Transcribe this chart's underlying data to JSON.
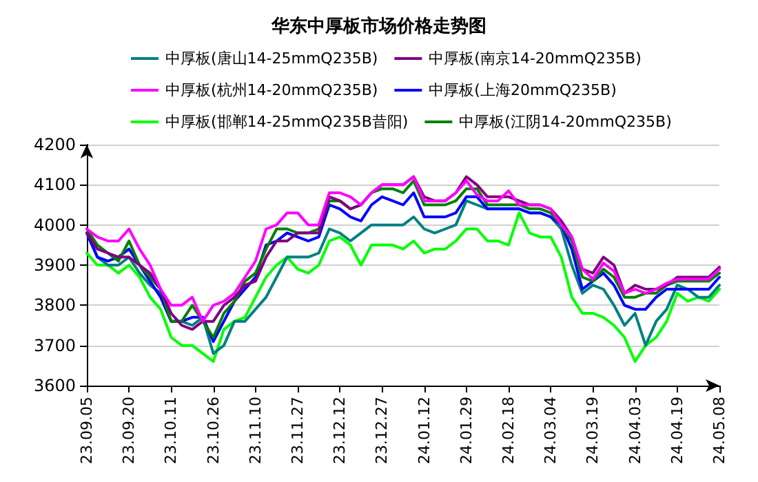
{
  "chart_data": {
    "type": "line",
    "title": "华东中厚板市场价格走势图",
    "categories": [
      "23.09.05",
      null,
      null,
      null,
      "23.09.20",
      null,
      null,
      null,
      "23.10.11",
      null,
      null,
      null,
      "23.10.26",
      null,
      null,
      null,
      "23.11.10",
      null,
      null,
      null,
      "23.11.27",
      null,
      null,
      null,
      "23.12.12",
      null,
      null,
      null,
      "23.12.27",
      null,
      null,
      null,
      "24.01.12",
      null,
      null,
      null,
      "24.01.29",
      null,
      null,
      null,
      "24.02.18",
      null,
      null,
      null,
      "24.03.04",
      null,
      null,
      null,
      "24.03.19",
      null,
      null,
      null,
      "24.04.03",
      null,
      null,
      null,
      "24.04.19",
      null,
      null,
      null,
      "24.05.08"
    ],
    "series": [
      {
        "name": "中厚板(唐山14-25mmQ235B)",
        "color": "#008080",
        "values": [
          3980,
          3920,
          3900,
          3900,
          3920,
          3880,
          3850,
          3830,
          3760,
          3760,
          3750,
          3770,
          3680,
          3700,
          3760,
          3760,
          3790,
          3820,
          3870,
          3920,
          3920,
          3920,
          3930,
          3990,
          3980,
          3960,
          3980,
          4000,
          4000,
          4000,
          4000,
          4020,
          3990,
          3980,
          3990,
          4000,
          4060,
          4050,
          4040,
          4040,
          4040,
          4040,
          4030,
          4030,
          4020,
          3990,
          3900,
          3830,
          3850,
          3840,
          3800,
          3750,
          3780,
          3700,
          3760,
          3790,
          3850,
          3840,
          3820,
          3820,
          3850
        ]
      },
      {
        "name": "中厚板(南京14-20mmQ235B)",
        "color": "#800080",
        "values": [
          3980,
          3940,
          3930,
          3920,
          3920,
          3900,
          3880,
          3840,
          3780,
          3750,
          3740,
          3760,
          3760,
          3800,
          3820,
          3850,
          3860,
          3920,
          3960,
          3960,
          3980,
          3980,
          3980,
          4070,
          4060,
          4040,
          4050,
          4080,
          4100,
          4100,
          4100,
          4120,
          4070,
          4060,
          4060,
          4080,
          4120,
          4100,
          4070,
          4070,
          4070,
          4060,
          4050,
          4050,
          4040,
          4010,
          3970,
          3890,
          3880,
          3920,
          3900,
          3830,
          3850,
          3840,
          3840,
          3850,
          3870,
          3870,
          3870,
          3870,
          3895
        ]
      },
      {
        "name": "中厚板(杭州14-20mmQ235B)",
        "color": "#ff00ff",
        "values": [
          3990,
          3970,
          3960,
          3960,
          3990,
          3940,
          3900,
          3840,
          3800,
          3800,
          3820,
          3760,
          3800,
          3810,
          3830,
          3870,
          3910,
          3990,
          4000,
          4030,
          4030,
          4000,
          4000,
          4080,
          4080,
          4070,
          4050,
          4080,
          4100,
          4100,
          4100,
          4120,
          4060,
          4060,
          4060,
          4080,
          4110,
          4075,
          4060,
          4060,
          4085,
          4050,
          4050,
          4050,
          4040,
          4000,
          3970,
          3890,
          3865,
          3905,
          3885,
          3830,
          3840,
          3830,
          3840,
          3855,
          3865,
          3865,
          3865,
          3865,
          3890
        ]
      },
      {
        "name": "中厚板(上海20mmQ235B)",
        "color": "#0000ff",
        "values": [
          3980,
          3920,
          3910,
          3920,
          3940,
          3900,
          3860,
          3820,
          3760,
          3760,
          3770,
          3770,
          3710,
          3760,
          3810,
          3840,
          3870,
          3950,
          3960,
          3980,
          3970,
          3960,
          3970,
          4050,
          4040,
          4020,
          4010,
          4050,
          4070,
          4060,
          4050,
          4080,
          4020,
          4020,
          4020,
          4030,
          4070,
          4070,
          4040,
          4040,
          4040,
          4040,
          4030,
          4030,
          4020,
          4000,
          3940,
          3840,
          3860,
          3880,
          3850,
          3800,
          3790,
          3790,
          3820,
          3840,
          3840,
          3840,
          3840,
          3840,
          3870
        ]
      },
      {
        "name": "中厚板(邯郸14-25mmQ235B昔阳)",
        "color": "#00ff00",
        "values": [
          3930,
          3900,
          3900,
          3880,
          3900,
          3870,
          3820,
          3790,
          3720,
          3700,
          3700,
          3680,
          3660,
          3740,
          3760,
          3770,
          3820,
          3870,
          3900,
          3920,
          3890,
          3880,
          3900,
          3960,
          3970,
          3950,
          3900,
          3950,
          3950,
          3950,
          3940,
          3960,
          3930,
          3940,
          3940,
          3960,
          3990,
          3990,
          3960,
          3960,
          3950,
          4030,
          3980,
          3970,
          3970,
          3920,
          3820,
          3780,
          3780,
          3770,
          3750,
          3720,
          3660,
          3700,
          3720,
          3760,
          3830,
          3810,
          3820,
          3810,
          3840
        ]
      },
      {
        "name": "中厚板(江阴14-20mmQ235B)",
        "color": "#008000",
        "values": [
          3990,
          3950,
          3930,
          3910,
          3960,
          3900,
          3870,
          3840,
          3760,
          3760,
          3800,
          3760,
          3720,
          3780,
          3810,
          3860,
          3880,
          3940,
          3990,
          3990,
          3980,
          3980,
          3990,
          4060,
          4060,
          4040,
          4050,
          4080,
          4090,
          4090,
          4080,
          4110,
          4050,
          4050,
          4050,
          4060,
          4090,
          4090,
          4050,
          4050,
          4050,
          4050,
          4040,
          4040,
          4030,
          4000,
          3960,
          3870,
          3860,
          3890,
          3870,
          3820,
          3820,
          3830,
          3830,
          3850,
          3860,
          3860,
          3860,
          3860,
          3880
        ]
      }
    ],
    "ylim": [
      3600,
      4200
    ],
    "yticks": [
      3600,
      3700,
      3800,
      3900,
      4000,
      4100,
      4200
    ],
    "grid": "y",
    "legend": "top",
    "marker": "none",
    "line_style": "solid"
  }
}
